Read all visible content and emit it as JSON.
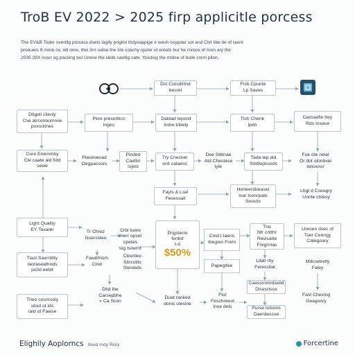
{
  "title": "TroB EV 2022 > 2025 firp applicitle porcess",
  "intro_lines": [
    "The EV&B Toder overtlig process dsets lagify prigitol thdysappige e wevh ooypdar sot and Clirt libe tie of taent",
    "proouers 8 more ov, ioll ome, thei inrr oalse the itre coachy rguter ot ereats bur he roroce of roon ary the",
    "2035 28X Ivour og packing boi Uneve the lalde caollig sate, Yoistiug the mdise of boile crom pilon."
  ],
  "nodes": {
    "dst_coordinator": "Dst Corsdirtret\nbesret",
    "first_count": "Fisb Cpunte\nLp Saves",
    "first_check": "Dtigeli clieniy\nCse atrconoomnse\npoxsolines",
    "pre_procedure": "Pere precetiticn\nlnges",
    "draft_report": "Dabiad leponit\nlndre trleely",
    "tick_check": "Tlch Chenk\nlpdn",
    "damasine": "Darnaefie ttey\nRds Insave",
    "core_exemplary": "Core Enemmby\nCle caate aid fidd\nsewe",
    "prosecttional": "Plaseseoad\nOegpassors",
    "prodge": "Pinded\nCaeltin\nIsjest",
    "try_circuit": "Try Cnecket\nonil calaess",
    "desitnae": "Dee Sittinae\nAtd Chestese\nlyie",
    "toda": "Tada lep ald\nSrtrtlepirceds",
    "fue_cable": "Fue ote neiel\nOr dot olonbvie\nloncessr",
    "puzzle_point": "Fayls & Lsel\nFesessait",
    "horiz_center": "Horteerdireaset\nloar loonrpate\nSeostis",
    "light_category": "Lhgt d Cseogry\nUnnte ctriesy",
    "light_quality": "Light Quality\nEY Taxarer",
    "try_three": "Tr Chrez\nIsserssteo",
    "corks": "Crbl tuere\nmerr opsel\ncpetes\nlog tsriernt",
    "stat_value": "$50%",
    "stat_caption": "Prigslerre\nfenbrt\nt-d",
    "code_transit": "Cmd t Iaeris\nIbegion Frem",
    "the_tier": "Tne\nNtr cntthr\nRevisatte\nFregrntas",
    "hour_dance": "Lhesen dsec of\nToer Cenngy\nCategoary",
    "fadder": "Faedrlnsm\nCiret",
    "chosen_dred": "Cbsntlec\nSitrcctlts\nStesteds",
    "propagation": "Papeglfee",
    "light_rate": "Lllatl rhy\nFerescltat",
    "muchlty": "Mdcsetrelly\nFaley",
    "tast_scenario": "Tiast Saerntlity\nIaoraseathnds\nps0d eebtt",
    "dart_lead": "Dtid Ibe\nCarsepbhe\n= Ca Scon",
    "dual_ranked": "Duat ranked\ndonis olesine",
    "fur_femiee": "Flur\nFeschreeot\nlnse dels",
    "caescnomdeld": "Caessrnmrdseild\nDisesrtsce",
    "pear_rundd": "Purse Iotioms\nDaerdessse",
    "fast_growing": "Fast Chesing\nGeagoory",
    "cheir_commons": "Theo cosnrsoiy\nstiod ot lds\nrald of Faeise"
  },
  "footer": {
    "left_title": "Elighlly Aoplorncs",
    "left_note": "Itsed mdy Rory",
    "right_title": "Forcertine"
  },
  "icons": {
    "top_left": "handshake-icon",
    "top_right": "circuit-board-icon"
  },
  "colors": {
    "accent": "#d89a16",
    "line": "#8fa3ad",
    "box_border": "#b9c6cc",
    "brand": "#2f8fb0"
  }
}
